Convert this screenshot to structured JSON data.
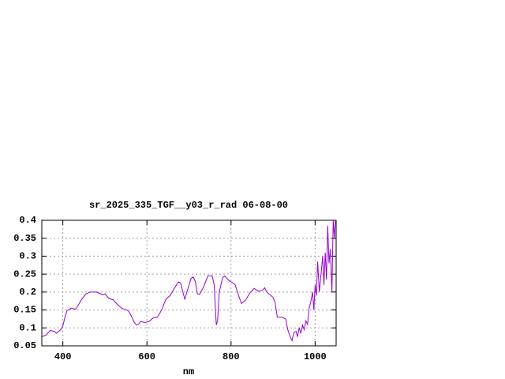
{
  "chart_data": {
    "type": "line",
    "title": "sr_2025_335_TGF__y03_r_rad 06-08-00",
    "xlabel": "nm",
    "xlim": [
      350,
      1050
    ],
    "ylim": [
      0.05,
      0.4
    ],
    "xticks": [
      400,
      600,
      800,
      1000
    ],
    "yticks": [
      0.05,
      0.1,
      0.15,
      0.2,
      0.25,
      0.3,
      0.35,
      0.4
    ],
    "grid": true,
    "color": "#9400d3",
    "x": [
      350,
      360,
      370,
      380,
      385,
      395,
      400,
      405,
      410,
      420,
      430,
      435,
      445,
      455,
      465,
      480,
      490,
      495,
      500,
      510,
      520,
      530,
      540,
      555,
      560,
      570,
      575,
      580,
      585,
      595,
      605,
      615,
      625,
      635,
      645,
      655,
      665,
      675,
      680,
      690,
      695,
      705,
      710,
      715,
      720,
      725,
      735,
      745,
      755,
      760,
      763,
      765,
      768,
      772,
      780,
      785,
      795,
      805,
      810,
      818,
      825,
      835,
      845,
      855,
      865,
      875,
      880,
      885,
      890,
      900,
      905,
      910,
      920,
      930,
      935,
      940,
      945,
      950,
      955,
      958,
      962,
      966,
      970,
      974,
      978,
      982,
      985,
      990,
      994,
      997,
      1000,
      1003,
      1006,
      1010,
      1015,
      1018,
      1021,
      1024,
      1027,
      1030,
      1033,
      1036,
      1040,
      1043,
      1046,
      1048
    ],
    "values": [
      0.075,
      0.08,
      0.093,
      0.09,
      0.085,
      0.095,
      0.105,
      0.13,
      0.148,
      0.155,
      0.152,
      0.16,
      0.18,
      0.195,
      0.2,
      0.2,
      0.195,
      0.192,
      0.195,
      0.182,
      0.178,
      0.165,
      0.155,
      0.148,
      0.14,
      0.115,
      0.108,
      0.11,
      0.118,
      0.115,
      0.118,
      0.128,
      0.13,
      0.15,
      0.18,
      0.19,
      0.21,
      0.228,
      0.225,
      0.18,
      0.2,
      0.238,
      0.242,
      0.23,
      0.195,
      0.193,
      0.215,
      0.245,
      0.245,
      0.22,
      0.15,
      0.108,
      0.12,
      0.2,
      0.24,
      0.245,
      0.232,
      0.225,
      0.22,
      0.19,
      0.168,
      0.178,
      0.198,
      0.21,
      0.202,
      0.205,
      0.212,
      0.2,
      0.195,
      0.185,
      0.17,
      0.13,
      0.13,
      0.125,
      0.095,
      0.078,
      0.065,
      0.088,
      0.09,
      0.075,
      0.1,
      0.085,
      0.108,
      0.095,
      0.12,
      0.11,
      0.15,
      0.175,
      0.2,
      0.15,
      0.22,
      0.19,
      0.285,
      0.2,
      0.26,
      0.3,
      0.22,
      0.31,
      0.235,
      0.385,
      0.28,
      0.32,
      0.2,
      0.4,
      0.35,
      0.4
    ]
  }
}
